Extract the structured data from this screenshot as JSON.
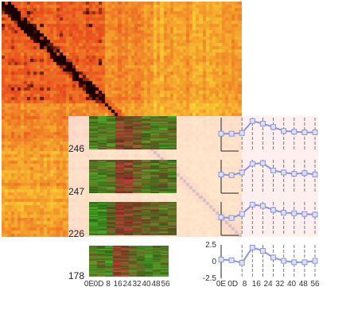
{
  "clusters": [
    {
      "label": "246",
      "profile": [
        0.1,
        0.1,
        0.2,
        2.0,
        1.6,
        1.1,
        0.5,
        0.4,
        0.3,
        0.3
      ]
    },
    {
      "label": "247",
      "profile": [
        0.3,
        0.2,
        0.6,
        1.9,
        2.0,
        0.9,
        0.6,
        0.4,
        0.5,
        0.3
      ]
    },
    {
      "label": "226",
      "profile": [
        0.2,
        0.1,
        0.7,
        2.1,
        1.9,
        1.3,
        0.9,
        0.8,
        0.7,
        0.6
      ]
    },
    {
      "label": "178",
      "profile": [
        0.3,
        0.2,
        -0.2,
        2.1,
        1.6,
        0.6,
        0.1,
        -0.1,
        -0.1,
        0.1
      ]
    }
  ],
  "x_ticks": [
    "0E",
    "0D",
    "8",
    "16",
    "24",
    "32",
    "40",
    "48",
    "56"
  ],
  "y_ticks": [
    "2.5",
    "0",
    "-2.5"
  ],
  "colors": {
    "heat_high": "#1a0000",
    "heat_mid": "#e84a1e",
    "heat_low": "#fff33a",
    "strip_green": "#52c32a",
    "strip_red": "#d8453c",
    "profile_line": "#8a95e0"
  }
}
